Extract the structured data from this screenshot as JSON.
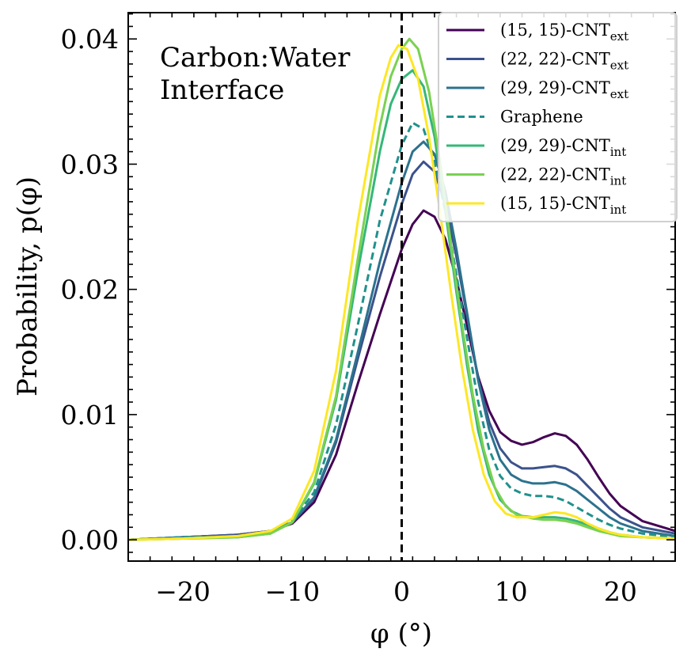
{
  "chart_data": {
    "type": "line",
    "xlabel": "φ (°)",
    "ylabel": "Probability, p(φ)",
    "xlim": [
      -25,
      25
    ],
    "ylim": [
      -0.0017,
      0.0421
    ],
    "xticks": [
      -20,
      -10,
      0,
      10,
      20
    ],
    "xtick_labels": [
      "−20",
      "−10",
      "0",
      "10",
      "20"
    ],
    "yticks": [
      0.0,
      0.01,
      0.02,
      0.03,
      0.04
    ],
    "ytick_labels": [
      "0.00",
      "0.01",
      "0.02",
      "0.03",
      "0.04"
    ],
    "grid": false,
    "legend_position": "top-right",
    "annotations": [
      {
        "text": "Carbon:Water",
        "x": -22.5,
        "y": 0.0385
      },
      {
        "text": "Interface",
        "x": -22.5,
        "y": 0.0357
      }
    ],
    "vline": {
      "x": 0,
      "style": "dashed",
      "color": "#000000"
    },
    "series": [
      {
        "name": "(15, 15)-CNT",
        "subscript": "ext",
        "color": "#440154",
        "dash": false,
        "points": [
          [
            -25,
            0.0
          ],
          [
            -20,
            0.0002
          ],
          [
            -15,
            0.0004
          ],
          [
            -12,
            0.0007
          ],
          [
            -10,
            0.0013
          ],
          [
            -8,
            0.003
          ],
          [
            -6,
            0.0068
          ],
          [
            -4,
            0.0125
          ],
          [
            -2,
            0.018
          ],
          [
            0,
            0.0232
          ],
          [
            1,
            0.0252
          ],
          [
            2,
            0.0263
          ],
          [
            3,
            0.0258
          ],
          [
            4,
            0.024
          ],
          [
            5,
            0.0208
          ],
          [
            6,
            0.017
          ],
          [
            7,
            0.013
          ],
          [
            8,
            0.0103
          ],
          [
            9,
            0.0086
          ],
          [
            10,
            0.0079
          ],
          [
            11,
            0.0076
          ],
          [
            12,
            0.0078
          ],
          [
            13,
            0.0082
          ],
          [
            14,
            0.0085
          ],
          [
            15,
            0.0083
          ],
          [
            16,
            0.0076
          ],
          [
            17,
            0.0064
          ],
          [
            18,
            0.005
          ],
          [
            19,
            0.0037
          ],
          [
            20,
            0.0027
          ],
          [
            22,
            0.0015
          ],
          [
            25,
            0.0007
          ]
        ]
      },
      {
        "name": "(22, 22)-CNT",
        "subscript": "ext",
        "color": "#3b528b",
        "dash": false,
        "points": [
          [
            -25,
            0.0
          ],
          [
            -20,
            0.0002
          ],
          [
            -15,
            0.0004
          ],
          [
            -12,
            0.0007
          ],
          [
            -10,
            0.0014
          ],
          [
            -8,
            0.0033
          ],
          [
            -6,
            0.0078
          ],
          [
            -4,
            0.0145
          ],
          [
            -2,
            0.021
          ],
          [
            0,
            0.0268
          ],
          [
            1,
            0.0292
          ],
          [
            2,
            0.0302
          ],
          [
            3,
            0.0294
          ],
          [
            4,
            0.0268
          ],
          [
            5,
            0.0226
          ],
          [
            6,
            0.0178
          ],
          [
            7,
            0.0128
          ],
          [
            8,
            0.0094
          ],
          [
            9,
            0.0073
          ],
          [
            10,
            0.0062
          ],
          [
            11,
            0.0057
          ],
          [
            12,
            0.0057
          ],
          [
            13,
            0.0058
          ],
          [
            14,
            0.0059
          ],
          [
            15,
            0.0057
          ],
          [
            16,
            0.0052
          ],
          [
            17,
            0.0043
          ],
          [
            18,
            0.0034
          ],
          [
            19,
            0.0025
          ],
          [
            20,
            0.0018
          ],
          [
            22,
            0.001
          ],
          [
            25,
            0.0005
          ]
        ]
      },
      {
        "name": "(29, 29)-CNT",
        "subscript": "ext",
        "color": "#2c728e",
        "dash": false,
        "points": [
          [
            -25,
            0.0
          ],
          [
            -20,
            0.0002
          ],
          [
            -15,
            0.0003
          ],
          [
            -12,
            0.0006
          ],
          [
            -10,
            0.0014
          ],
          [
            -8,
            0.0034
          ],
          [
            -6,
            0.008
          ],
          [
            -4,
            0.015
          ],
          [
            -2,
            0.0222
          ],
          [
            0,
            0.0285
          ],
          [
            1,
            0.031
          ],
          [
            2,
            0.0318
          ],
          [
            3,
            0.0308
          ],
          [
            4,
            0.0278
          ],
          [
            5,
            0.0232
          ],
          [
            6,
            0.018
          ],
          [
            7,
            0.0127
          ],
          [
            8,
            0.0088
          ],
          [
            9,
            0.0064
          ],
          [
            10,
            0.0052
          ],
          [
            11,
            0.0047
          ],
          [
            12,
            0.0045
          ],
          [
            13,
            0.0045
          ],
          [
            14,
            0.0046
          ],
          [
            15,
            0.0044
          ],
          [
            16,
            0.0039
          ],
          [
            17,
            0.0032
          ],
          [
            18,
            0.0025
          ],
          [
            19,
            0.0018
          ],
          [
            20,
            0.0013
          ],
          [
            22,
            0.0007
          ],
          [
            25,
            0.0003
          ]
        ]
      },
      {
        "name": "Graphene",
        "subscript": "",
        "color": "#21918c",
        "dash": true,
        "points": [
          [
            -25,
            0.0
          ],
          [
            -20,
            0.0002
          ],
          [
            -15,
            0.0003
          ],
          [
            -12,
            0.0006
          ],
          [
            -10,
            0.0015
          ],
          [
            -8,
            0.0038
          ],
          [
            -6,
            0.0092
          ],
          [
            -4,
            0.0172
          ],
          [
            -2,
            0.0255
          ],
          [
            0,
            0.0315
          ],
          [
            1,
            0.0333
          ],
          [
            2,
            0.0328
          ],
          [
            3,
            0.0302
          ],
          [
            4,
            0.0262
          ],
          [
            5,
            0.0212
          ],
          [
            6,
            0.016
          ],
          [
            7,
            0.011
          ],
          [
            8,
            0.0072
          ],
          [
            9,
            0.0051
          ],
          [
            10,
            0.0041
          ],
          [
            11,
            0.0037
          ],
          [
            12,
            0.0035
          ],
          [
            13,
            0.0035
          ],
          [
            14,
            0.0034
          ],
          [
            15,
            0.0031
          ],
          [
            16,
            0.0026
          ],
          [
            17,
            0.0021
          ],
          [
            18,
            0.0016
          ],
          [
            19,
            0.0012
          ],
          [
            20,
            0.0009
          ],
          [
            22,
            0.0005
          ],
          [
            25,
            0.0002
          ]
        ]
      },
      {
        "name": "(29, 29)-CNT",
        "subscript": "int",
        "color": "#35b779",
        "dash": false,
        "points": [
          [
            -25,
            0.0
          ],
          [
            -20,
            0.0001
          ],
          [
            -15,
            0.0002
          ],
          [
            -12,
            0.0005
          ],
          [
            -10,
            0.0014
          ],
          [
            -8,
            0.0045
          ],
          [
            -6,
            0.0112
          ],
          [
            -4,
            0.0215
          ],
          [
            -2,
            0.031
          ],
          [
            -1,
            0.0348
          ],
          [
            0,
            0.0368
          ],
          [
            1,
            0.0375
          ],
          [
            2,
            0.0362
          ],
          [
            3,
            0.0322
          ],
          [
            4,
            0.0262
          ],
          [
            5,
            0.0198
          ],
          [
            6,
            0.0138
          ],
          [
            7,
            0.0087
          ],
          [
            8,
            0.0052
          ],
          [
            9,
            0.0032
          ],
          [
            10,
            0.0023
          ],
          [
            11,
            0.0019
          ],
          [
            12,
            0.0018
          ],
          [
            13,
            0.0018
          ],
          [
            14,
            0.0018
          ],
          [
            15,
            0.0017
          ],
          [
            16,
            0.0015
          ],
          [
            17,
            0.0012
          ],
          [
            18,
            0.0009
          ],
          [
            19,
            0.0006
          ],
          [
            20,
            0.0004
          ],
          [
            22,
            0.0002
          ],
          [
            25,
            0.0001
          ]
        ]
      },
      {
        "name": "(22, 22)-CNT",
        "subscript": "int",
        "color": "#7ad151",
        "dash": false,
        "points": [
          [
            -25,
            0.0
          ],
          [
            -20,
            0.0001
          ],
          [
            -15,
            0.0002
          ],
          [
            -12,
            0.0005
          ],
          [
            -10,
            0.0014
          ],
          [
            -8,
            0.0046
          ],
          [
            -6,
            0.0115
          ],
          [
            -4,
            0.0225
          ],
          [
            -2,
            0.033
          ],
          [
            -1,
            0.037
          ],
          [
            0,
            0.0392
          ],
          [
            0.7,
            0.04
          ],
          [
            1.5,
            0.0392
          ],
          [
            2.5,
            0.0358
          ],
          [
            3.5,
            0.0302
          ],
          [
            4.5,
            0.0236
          ],
          [
            5.5,
            0.0172
          ],
          [
            6.5,
            0.0116
          ],
          [
            7.5,
            0.0072
          ],
          [
            8.5,
            0.0042
          ],
          [
            9.5,
            0.0027
          ],
          [
            10.5,
            0.002
          ],
          [
            12,
            0.0017
          ],
          [
            13,
            0.0016
          ],
          [
            14,
            0.0016
          ],
          [
            15,
            0.0015
          ],
          [
            16,
            0.0013
          ],
          [
            17,
            0.001
          ],
          [
            18,
            0.0007
          ],
          [
            19,
            0.0005
          ],
          [
            20,
            0.0003
          ],
          [
            22,
            0.0002
          ],
          [
            25,
            0.0001
          ]
        ]
      },
      {
        "name": "(15, 15)-CNT",
        "subscript": "int",
        "color": "#fde725",
        "dash": false,
        "points": [
          [
            -25,
            0.0
          ],
          [
            -20,
            0.0001
          ],
          [
            -15,
            0.0003
          ],
          [
            -12,
            0.0007
          ],
          [
            -10,
            0.0017
          ],
          [
            -8,
            0.0055
          ],
          [
            -6,
            0.0135
          ],
          [
            -4,
            0.0255
          ],
          [
            -2,
            0.0355
          ],
          [
            -1,
            0.0385
          ],
          [
            -0.3,
            0.0395
          ],
          [
            0.5,
            0.0392
          ],
          [
            1.5,
            0.0368
          ],
          [
            2.5,
            0.0322
          ],
          [
            3.5,
            0.0262
          ],
          [
            4.5,
            0.0198
          ],
          [
            5.5,
            0.0138
          ],
          [
            6.5,
            0.0088
          ],
          [
            7.5,
            0.0052
          ],
          [
            8.5,
            0.0031
          ],
          [
            9.5,
            0.0021
          ],
          [
            10.5,
            0.0018
          ],
          [
            12,
            0.0018
          ],
          [
            13,
            0.002
          ],
          [
            14,
            0.0022
          ],
          [
            15,
            0.0021
          ],
          [
            16,
            0.0018
          ],
          [
            17,
            0.0013
          ],
          [
            18,
            0.0009
          ],
          [
            19,
            0.0006
          ],
          [
            20,
            0.0004
          ],
          [
            22,
            0.0002
          ],
          [
            25,
            0.0001
          ]
        ]
      }
    ]
  }
}
